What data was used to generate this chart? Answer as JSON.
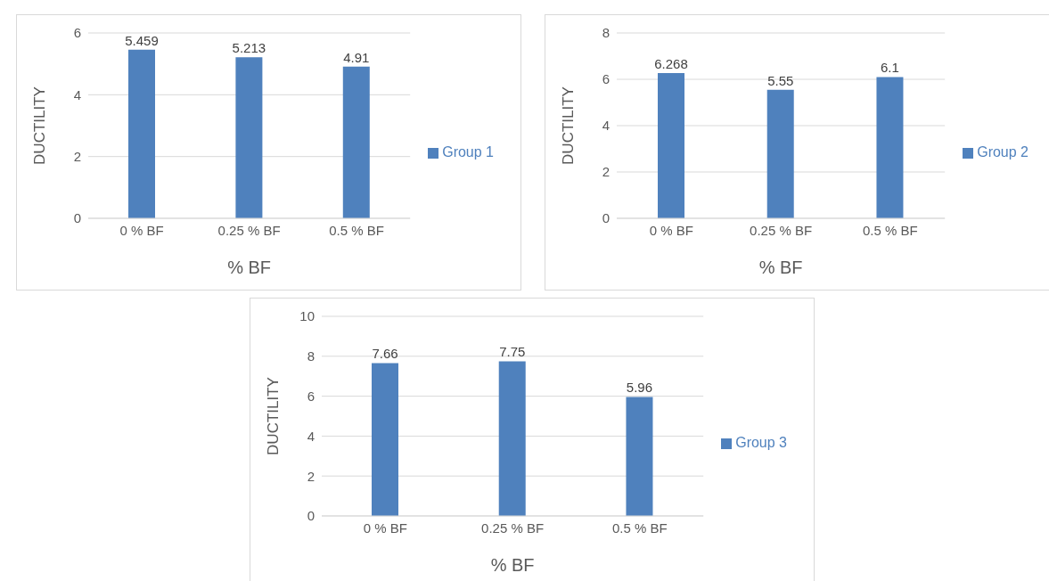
{
  "chart_data": [
    {
      "type": "bar",
      "categories": [
        "0 % BF",
        "0.25 % BF",
        "0.5 % BF"
      ],
      "series": [
        {
          "name": "Group 1",
          "color": "#4f81bd",
          "values": [
            5.459,
            5.213,
            4.91
          ]
        }
      ],
      "xlabel": "% BF",
      "ylabel": "DUCTILITY",
      "ylim": [
        0,
        6
      ],
      "yticks": [
        0,
        2,
        4,
        6
      ],
      "grid": "y",
      "legend": "right",
      "data_labels": true
    },
    {
      "type": "bar",
      "categories": [
        "0 % BF",
        "0.25 % BF",
        "0.5 % BF"
      ],
      "series": [
        {
          "name": "Group 2",
          "color": "#4f81bd",
          "values": [
            6.268,
            5.55,
            6.1
          ]
        }
      ],
      "xlabel": "% BF",
      "ylabel": "DUCTILITY",
      "ylim": [
        0,
        8
      ],
      "yticks": [
        0,
        2,
        4,
        6,
        8
      ],
      "grid": "y",
      "legend": "right",
      "data_labels": true
    },
    {
      "type": "bar",
      "categories": [
        "0 % BF",
        "0.25 % BF",
        "0.5 % BF"
      ],
      "series": [
        {
          "name": "Group 3",
          "color": "#4f81bd",
          "values": [
            7.66,
            7.75,
            5.96
          ]
        }
      ],
      "xlabel": "% BF",
      "ylabel": "DUCTILITY",
      "ylim": [
        0,
        10
      ],
      "yticks": [
        0,
        2,
        4,
        6,
        8,
        10
      ],
      "grid": "y",
      "legend": "right",
      "data_labels": true
    }
  ]
}
